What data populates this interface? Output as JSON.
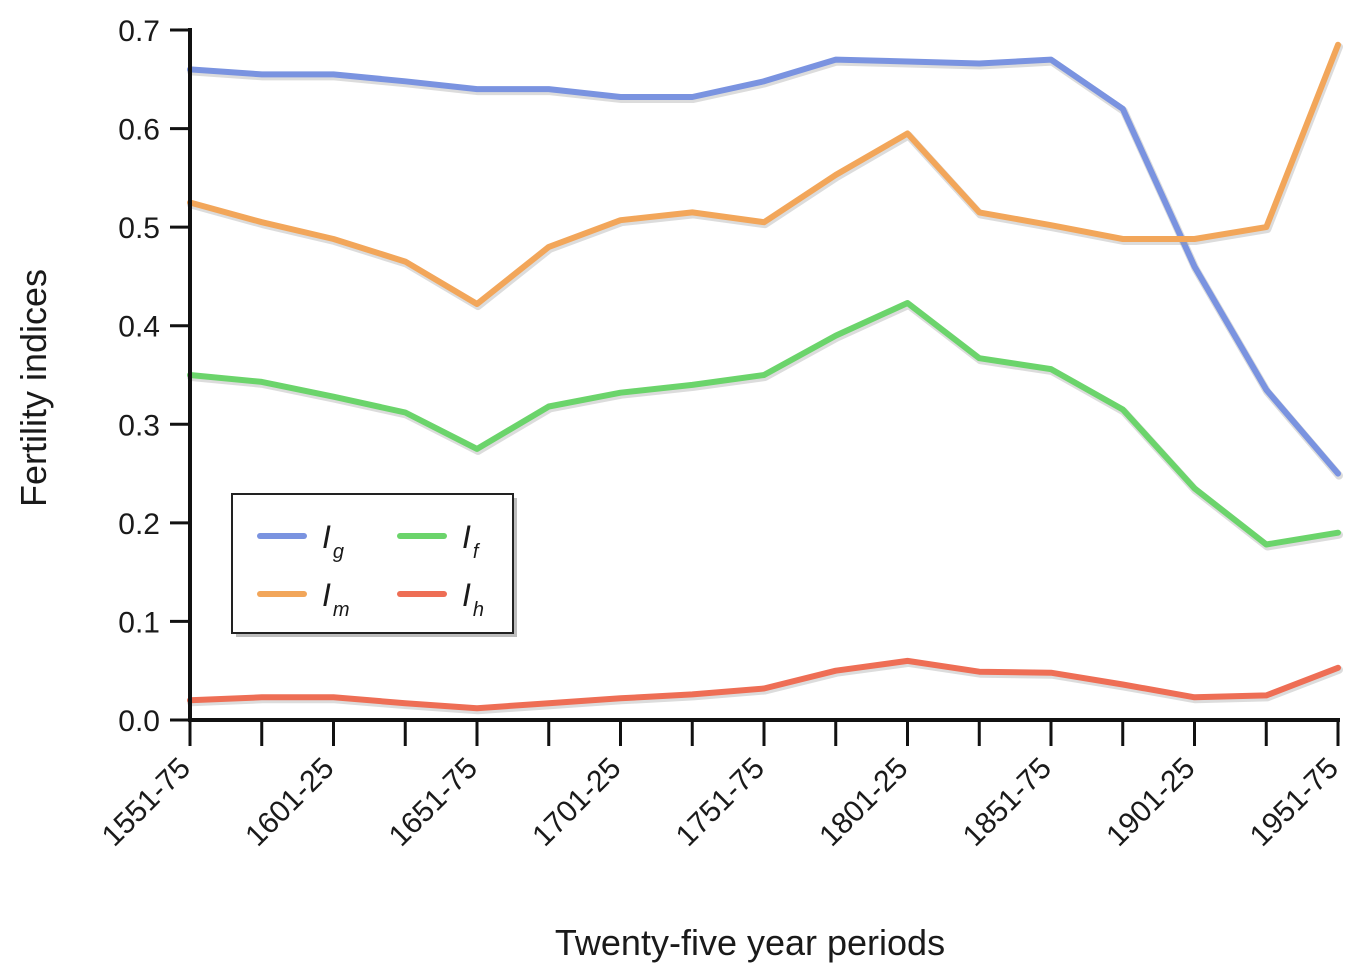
{
  "chart_data": {
    "type": "line",
    "xlabel": "Twenty-five year periods",
    "ylabel": "Fertility indices",
    "ylim": [
      0,
      0.7
    ],
    "yticks": [
      "0.0",
      "0.1",
      "0.2",
      "0.3",
      "0.4",
      "0.5",
      "0.6",
      "0.7"
    ],
    "x_tick_labels": [
      "1551-75",
      "1601-25",
      "1651-75",
      "1701-25",
      "1751-75",
      "1801-25",
      "1851-75",
      "1901-25",
      "1951-75"
    ],
    "x_tick_every": 2,
    "point_count": 17,
    "grid": false,
    "legend_position": "lower-left",
    "series": [
      {
        "key": "ig",
        "name_main": "I",
        "name_sub": "g",
        "color": "#7a93e0",
        "values": [
          0.66,
          0.655,
          0.655,
          0.648,
          0.64,
          0.64,
          0.632,
          0.632,
          0.648,
          0.67,
          0.668,
          0.666,
          0.67,
          0.62,
          0.46,
          0.335,
          0.25
        ]
      },
      {
        "key": "im",
        "name_main": "I",
        "name_sub": "m",
        "color": "#f2a65a",
        "values": [
          0.525,
          0.505,
          0.488,
          0.465,
          0.422,
          0.48,
          0.507,
          0.515,
          0.505,
          0.553,
          0.595,
          0.515,
          0.502,
          0.488,
          0.488,
          0.5,
          0.685
        ]
      },
      {
        "key": "if",
        "name_main": "I",
        "name_sub": "f",
        "color": "#6bd46b",
        "values": [
          0.35,
          0.343,
          0.328,
          0.312,
          0.275,
          0.318,
          0.332,
          0.34,
          0.35,
          0.39,
          0.423,
          0.367,
          0.356,
          0.315,
          0.235,
          0.178,
          0.19
        ]
      },
      {
        "key": "ih",
        "name_main": "I",
        "name_sub": "h",
        "color": "#ee6e55",
        "values": [
          0.02,
          0.023,
          0.023,
          0.017,
          0.012,
          0.017,
          0.022,
          0.026,
          0.032,
          0.05,
          0.06,
          0.049,
          0.048,
          0.036,
          0.023,
          0.025,
          0.053
        ]
      }
    ]
  }
}
